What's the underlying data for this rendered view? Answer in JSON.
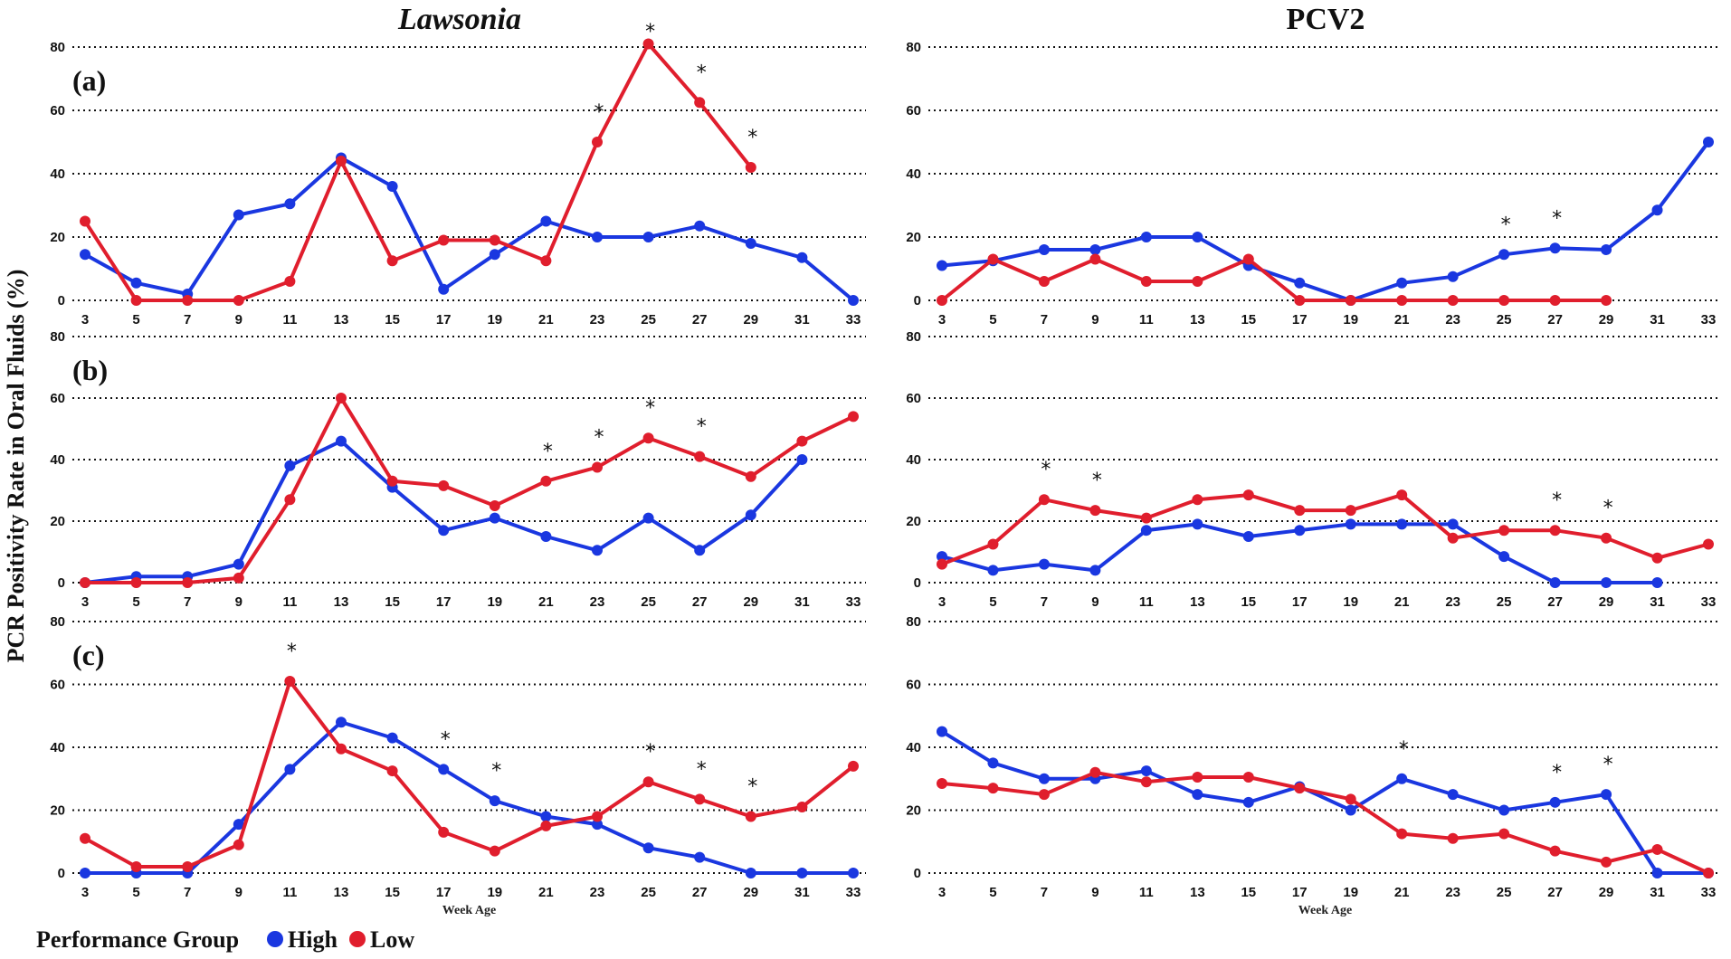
{
  "y_axis_label": "PCR Positivity Rate in Oral Fluids (%)",
  "legend": {
    "title": "Performance Group",
    "entries": [
      {
        "name": "High",
        "color": "#1a37e0"
      },
      {
        "name": "Low",
        "color": "#e01e2d"
      }
    ]
  },
  "chart_data": [
    {
      "type": "line",
      "column_title": "Lawsonia",
      "panel": "(a)",
      "x": [
        3,
        5,
        7,
        9,
        11,
        13,
        15,
        17,
        19,
        21,
        23,
        25,
        27,
        29,
        31,
        33
      ],
      "xlabel": "",
      "ylim": [
        0,
        80
      ],
      "yticks": [
        0,
        20,
        40,
        60,
        80
      ],
      "series": [
        {
          "name": "High",
          "values": [
            14.5,
            5.5,
            2,
            27,
            30.5,
            45,
            36,
            3.5,
            14.5,
            25,
            20,
            20,
            23.5,
            18,
            13.5,
            0
          ]
        },
        {
          "name": "Low",
          "values": [
            25,
            0,
            0,
            0,
            6,
            44,
            12.5,
            19,
            19,
            12.5,
            50,
            81,
            62.5,
            42,
            null,
            null
          ]
        }
      ],
      "significance": [
        23,
        25,
        27,
        29
      ]
    },
    {
      "type": "line",
      "column_title": "PCV2",
      "panel": "",
      "x": [
        3,
        5,
        7,
        9,
        11,
        13,
        15,
        17,
        19,
        21,
        23,
        25,
        27,
        29,
        31,
        33
      ],
      "xlabel": "",
      "ylim": [
        0,
        80
      ],
      "yticks": [
        0,
        20,
        40,
        60,
        80
      ],
      "series": [
        {
          "name": "High",
          "values": [
            11,
            12.5,
            16,
            16,
            20,
            20,
            11,
            5.5,
            0,
            5.5,
            7.5,
            14.5,
            16.5,
            16,
            28.5,
            50
          ]
        },
        {
          "name": "Low",
          "values": [
            0,
            13,
            6,
            13,
            6,
            6,
            13,
            0,
            0,
            0,
            0,
            0,
            0,
            0,
            null,
            null
          ]
        }
      ],
      "significance": [
        25,
        27
      ]
    },
    {
      "type": "line",
      "column_title": "",
      "panel": "(b)",
      "x": [
        3,
        5,
        7,
        9,
        11,
        13,
        15,
        17,
        19,
        21,
        23,
        25,
        27,
        29,
        31,
        33
      ],
      "xlabel": "",
      "ylim": [
        0,
        80
      ],
      "yticks": [
        0,
        20,
        40,
        60,
        80
      ],
      "series": [
        {
          "name": "High",
          "values": [
            0,
            2,
            2,
            6,
            38,
            46,
            31,
            17,
            21,
            15,
            10.5,
            21,
            10.5,
            22,
            40,
            null
          ]
        },
        {
          "name": "Low",
          "values": [
            0,
            0,
            0,
            1.5,
            27,
            60,
            33,
            31.5,
            25,
            33,
            37.5,
            47,
            41,
            34.5,
            46,
            54
          ]
        }
      ],
      "significance": [
        21,
        23,
        25,
        27
      ]
    },
    {
      "type": "line",
      "column_title": "",
      "panel": "",
      "x": [
        3,
        5,
        7,
        9,
        11,
        13,
        15,
        17,
        19,
        21,
        23,
        25,
        27,
        29,
        31,
        33
      ],
      "xlabel": "",
      "ylim": [
        0,
        80
      ],
      "yticks": [
        0,
        20,
        40,
        60,
        80
      ],
      "series": [
        {
          "name": "High",
          "values": [
            8.5,
            4,
            6,
            4,
            17,
            19,
            15,
            17,
            19,
            19,
            19,
            8.5,
            0,
            0,
            0,
            null
          ]
        },
        {
          "name": "Low",
          "values": [
            6,
            12.5,
            27,
            23.5,
            21,
            27,
            28.5,
            23.5,
            23.5,
            28.5,
            14.5,
            17,
            17,
            14.5,
            8,
            12.5
          ]
        }
      ],
      "significance": [
        7,
        9,
        27,
        29
      ]
    },
    {
      "type": "line",
      "column_title": "",
      "panel": "(c)",
      "x": [
        3,
        5,
        7,
        9,
        11,
        13,
        15,
        17,
        19,
        21,
        23,
        25,
        27,
        29,
        31,
        33
      ],
      "xlabel": "Week Age",
      "ylim": [
        0,
        80
      ],
      "yticks": [
        0,
        20,
        40,
        60,
        80
      ],
      "series": [
        {
          "name": "High",
          "values": [
            0,
            0,
            0,
            15.5,
            33,
            48,
            43,
            33,
            23,
            18,
            15.5,
            8,
            5,
            0,
            0,
            0
          ]
        },
        {
          "name": "Low",
          "values": [
            11,
            2,
            2,
            9,
            61,
            39.5,
            32.5,
            13,
            7,
            15,
            18,
            29,
            23.5,
            18,
            21,
            34
          ]
        }
      ],
      "significance": [
        11,
        17,
        19,
        25,
        27,
        29
      ]
    },
    {
      "type": "line",
      "column_title": "",
      "panel": "",
      "x": [
        3,
        5,
        7,
        9,
        11,
        13,
        15,
        17,
        19,
        21,
        23,
        25,
        27,
        29,
        31,
        33
      ],
      "xlabel": "Week Age",
      "ylim": [
        0,
        80
      ],
      "yticks": [
        0,
        20,
        40,
        60,
        80
      ],
      "series": [
        {
          "name": "High",
          "values": [
            45,
            35,
            30,
            30,
            32.5,
            25,
            22.5,
            27.5,
            20,
            30,
            25,
            20,
            22.5,
            25,
            0,
            0
          ]
        },
        {
          "name": "Low",
          "values": [
            28.5,
            27,
            25,
            32,
            29,
            30.5,
            30.5,
            27,
            23.5,
            12.5,
            11,
            12.5,
            7,
            3.5,
            7.5,
            0
          ]
        }
      ],
      "significance": [
        21,
        27,
        29
      ]
    }
  ]
}
